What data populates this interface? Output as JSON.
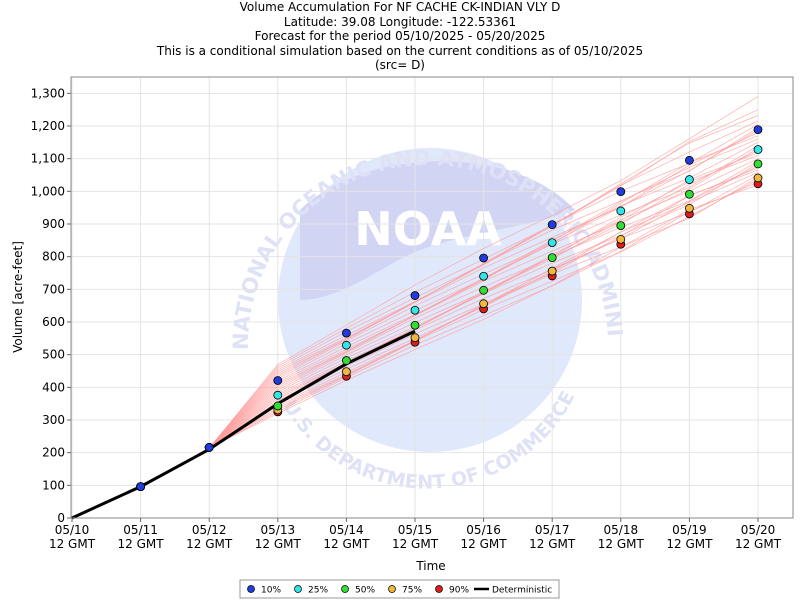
{
  "titles": {
    "line1": "Volume Accumulation For NF CACHE CK-INDIAN VLY D",
    "line2": "Latitude: 39.08 Longitude: -122.53361",
    "line3": "Forecast for the period 05/10/2025 - 05/20/2025",
    "line4": "This is a conditional simulation based on the current conditions as of 05/10/2025",
    "line5": "(src= D)"
  },
  "watermark": {
    "logo_text": "NOAA",
    "arc_top": "NATIONAL OCEANIC AND ATMOSPHERIC ADMINISTRATION",
    "arc_bottom": "U.S. DEPARTMENT OF COMMERCE"
  },
  "chart_data": {
    "type": "line",
    "xlabel": "Time",
    "ylabel": "Volume [acre-feet]",
    "ylim": [
      0,
      1350
    ],
    "yticks": [
      0,
      100,
      200,
      300,
      400,
      500,
      600,
      700,
      800,
      900,
      1000,
      1100,
      1200,
      1300
    ],
    "ytick_labels": [
      "0",
      "100",
      "200",
      "300",
      "400",
      "500",
      "600",
      "700",
      "800",
      "900",
      "1,000",
      "1,100",
      "1,200",
      "1,300"
    ],
    "x": [
      "05/10 12 GMT",
      "05/11 12 GMT",
      "05/12 12 GMT",
      "05/13 12 GMT",
      "05/14 12 GMT",
      "05/15 12 GMT",
      "05/16 12 GMT",
      "05/17 12 GMT",
      "05/18 12 GMT",
      "05/19 12 GMT",
      "05/20 12 GMT"
    ],
    "xtick_dates": [
      "05/10",
      "05/11",
      "05/12",
      "05/13",
      "05/14",
      "05/15",
      "05/16",
      "05/17",
      "05/18",
      "05/19",
      "05/20"
    ],
    "xtick_sub": "12 GMT",
    "grid": true,
    "legend_position": "bottom",
    "series": [
      {
        "name": "10%",
        "color": "#1f3ddb",
        "values": [
          null,
          96,
          216,
          421,
          566,
          681,
          796,
          898,
          999,
          1095,
          1189
        ]
      },
      {
        "name": "25%",
        "color": "#33e5e5",
        "values": [
          null,
          96,
          216,
          376,
          529,
          636,
          740,
          843,
          940,
          1036,
          1128
        ]
      },
      {
        "name": "50%",
        "color": "#33dd33",
        "values": [
          null,
          96,
          216,
          343,
          482,
          590,
          697,
          797,
          895,
          991,
          1084
        ]
      },
      {
        "name": "75%",
        "color": "#f0b83c",
        "values": [
          null,
          96,
          216,
          331,
          448,
          552,
          656,
          756,
          853,
          948,
          1041
        ]
      },
      {
        "name": "90%",
        "color": "#dd1e1e",
        "values": [
          null,
          96,
          216,
          325,
          434,
          538,
          640,
          741,
          838,
          931,
          1023
        ]
      }
    ],
    "deterministic": {
      "name": "Deterministic",
      "color": "#000000",
      "x_index": [
        0,
        1,
        2,
        3,
        4,
        5
      ],
      "values": [
        0,
        96,
        210,
        350,
        472,
        572
      ]
    },
    "trace_color": "#ff9a9a",
    "trace_endpoints": [
      1290,
      1250,
      1232,
      1215,
      1205,
      1195,
      1188,
      1180,
      1170,
      1160,
      1150,
      1140,
      1132,
      1125,
      1118,
      1110,
      1100,
      1092,
      1085,
      1078,
      1072,
      1065,
      1058,
      1050,
      1043,
      1036,
      1028,
      1020
    ]
  }
}
